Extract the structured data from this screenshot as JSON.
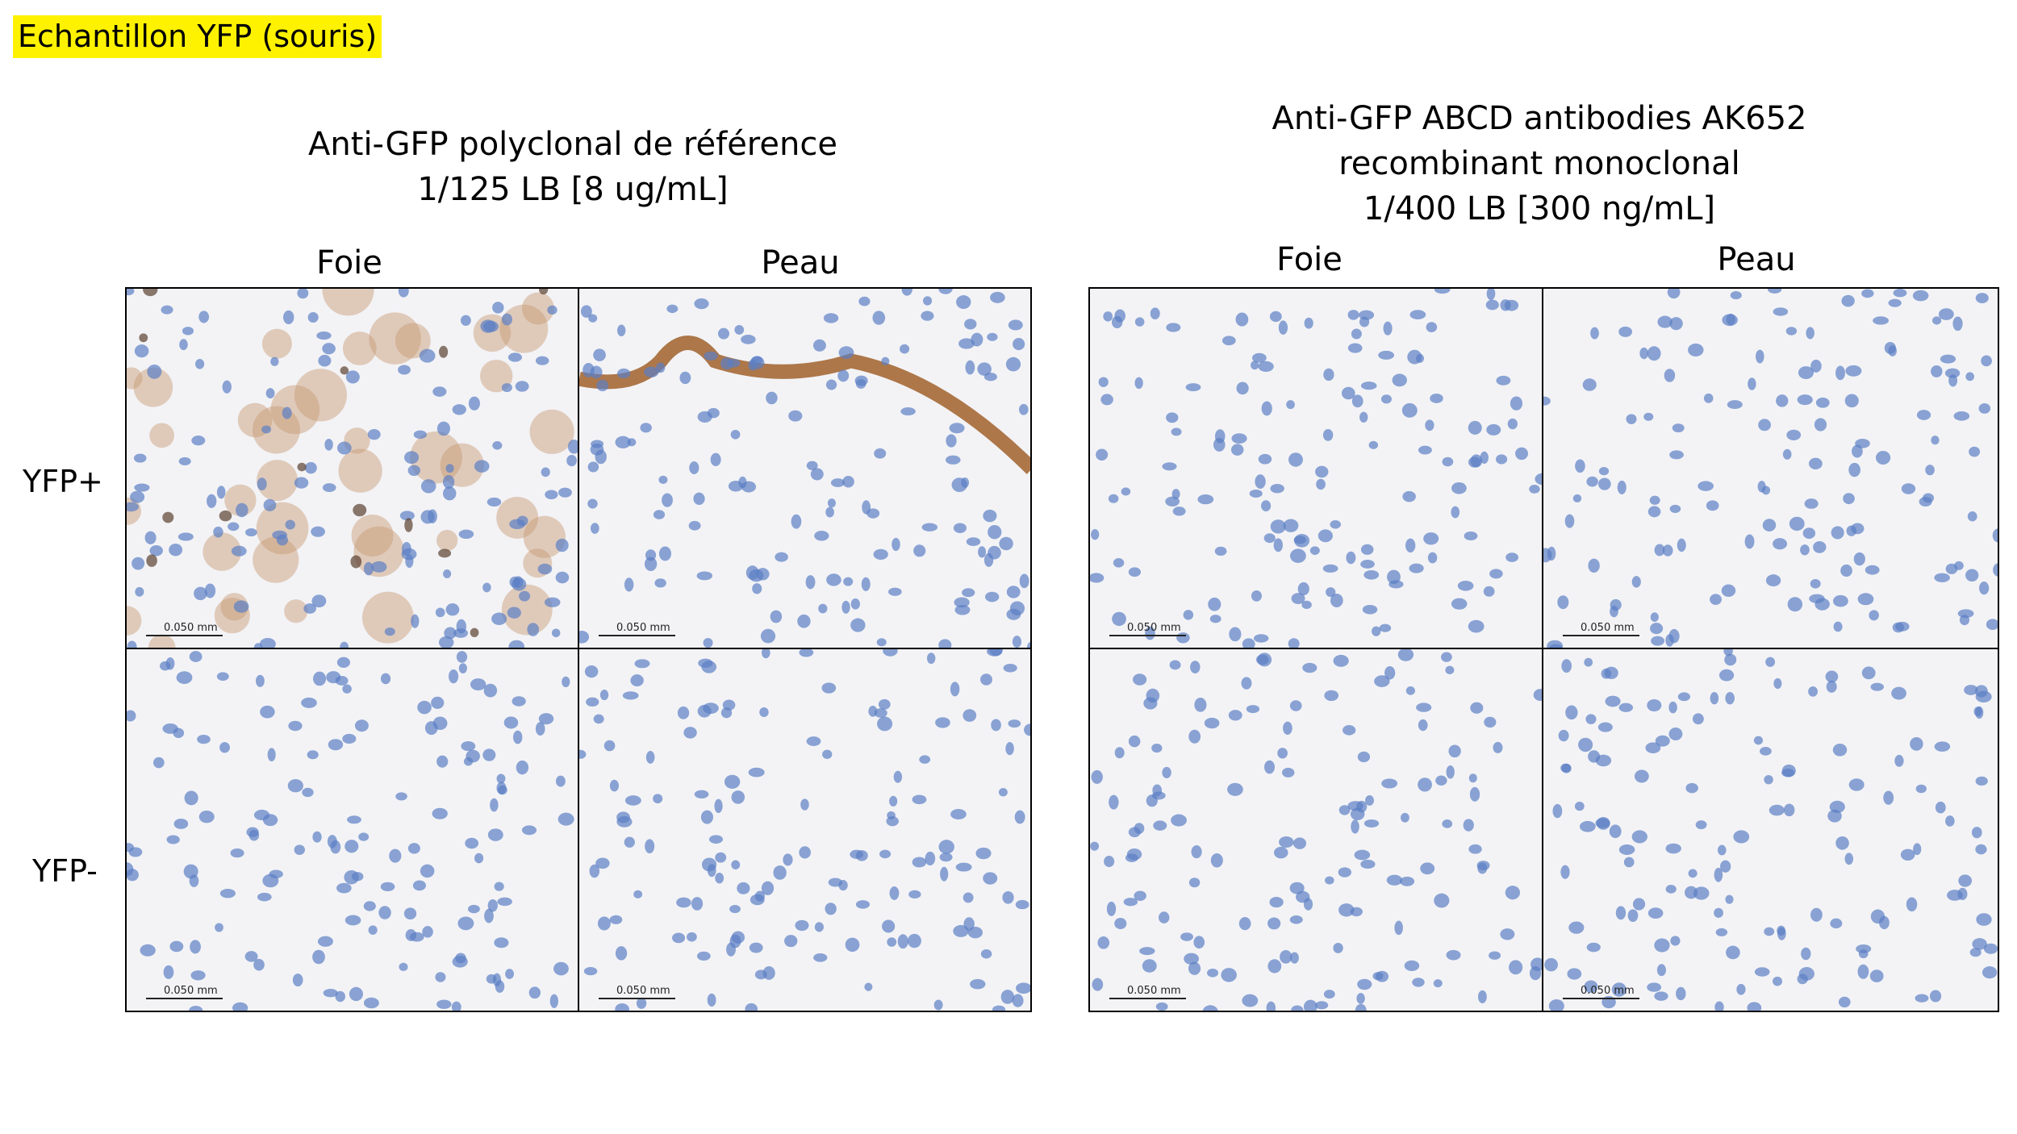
{
  "header": {
    "title": "Echantillon YFP (souris)"
  },
  "rows": [
    "YFP+",
    "YFP-"
  ],
  "groups": [
    {
      "title_lines": [
        "Anti-GFP polyclonal de référence",
        "1/125 LB [8 ug/mL]"
      ],
      "columns": [
        "Foie",
        "Peau"
      ],
      "scale_labels": [
        [
          "0.050 mm",
          "0.050 mm"
        ],
        [
          "0.050 mm",
          "0.050 mm"
        ]
      ]
    },
    {
      "title_lines": [
        "Anti-GFP ABCD antibodies AK652",
        "recombinant monoclonal",
        "1/400 LB [300 ng/mL]"
      ],
      "columns": [
        "Foie",
        "Peau"
      ],
      "scale_labels": [
        [
          "0.050 mm",
          "0.050 mm"
        ],
        [
          "0.050 mm",
          "0.050 mm"
        ]
      ]
    }
  ]
}
